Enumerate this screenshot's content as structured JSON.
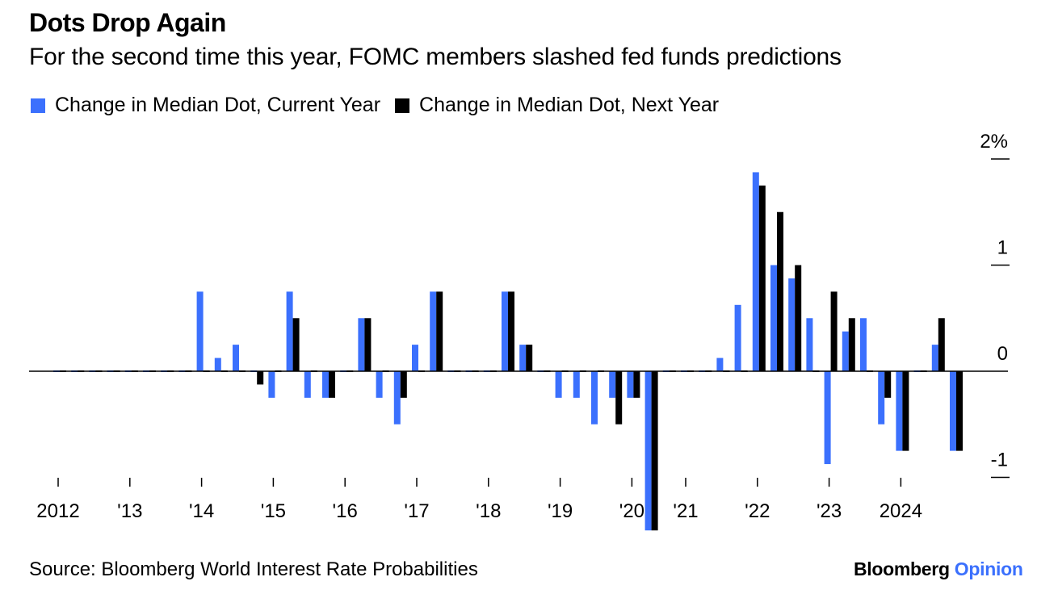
{
  "header": {
    "title": "Dots Drop Again",
    "subtitle": "For the second time this year, FOMC members slashed fed funds predictions"
  },
  "footer": {
    "source": "Source: Bloomberg World Interest Rate Probabilities",
    "brand_main": "Bloomberg",
    "brand_accent": "Opinion"
  },
  "colors": {
    "current_year": "#3b70fd",
    "next_year": "#000000",
    "brand_accent": "#3b70fd"
  },
  "chart_data": {
    "type": "bar",
    "title": "Dots Drop Again",
    "subtitle": "For the second time this year, FOMC members slashed fed funds predictions",
    "xlabel": "",
    "ylabel": "",
    "ylim": [
      -1,
      2
    ],
    "y_ticks": [
      {
        "value": 2,
        "label": "2%"
      },
      {
        "value": 1,
        "label": "1"
      },
      {
        "value": 0,
        "label": "0"
      },
      {
        "value": -1,
        "label": "-1"
      }
    ],
    "grid": false,
    "legend_position": "top-left",
    "x_ticks": [
      {
        "index": 0,
        "label": "2012"
      },
      {
        "index": 4,
        "label": "'13"
      },
      {
        "index": 8,
        "label": "'14"
      },
      {
        "index": 12,
        "label": "'15"
      },
      {
        "index": 16,
        "label": "'16"
      },
      {
        "index": 20,
        "label": "'17"
      },
      {
        "index": 24,
        "label": "'18"
      },
      {
        "index": 28,
        "label": "'19"
      },
      {
        "index": 32,
        "label": "'20"
      },
      {
        "index": 35,
        "label": "'21"
      },
      {
        "index": 39,
        "label": "'22"
      },
      {
        "index": 43,
        "label": "'23"
      },
      {
        "index": 47,
        "label": "2024"
      }
    ],
    "categories": [
      "2012-1",
      "2012-2",
      "2012-3",
      "2012-4",
      "2013-1",
      "2013-2",
      "2013-3",
      "2013-4",
      "2014-1",
      "2014-2",
      "2014-3",
      "2014-4",
      "2015-1",
      "2015-2",
      "2015-3",
      "2015-4",
      "2016-1",
      "2016-2",
      "2016-3",
      "2016-4",
      "2017-1",
      "2017-2",
      "2017-3",
      "2017-4",
      "2018-1",
      "2018-2",
      "2018-3",
      "2018-4",
      "2019-1",
      "2019-2",
      "2019-3",
      "2019-4",
      "2020-2",
      "2020-3",
      "2020-4",
      "2021-1",
      "2021-2",
      "2021-3",
      "2021-4",
      "2022-1",
      "2022-2",
      "2022-3",
      "2022-4",
      "2023-1",
      "2023-2",
      "2023-3",
      "2023-4",
      "2024-1",
      "2024-2",
      "2024-3",
      "2024-4"
    ],
    "series": [
      {
        "name": "Change in Median Dot, Current Year",
        "color": "#3b70fd",
        "values": [
          0,
          0,
          0,
          0,
          0,
          0,
          0,
          0,
          0.75,
          0.125,
          0.25,
          0,
          -0.25,
          0.75,
          -0.25,
          -0.25,
          0,
          0.5,
          -0.25,
          -0.5,
          0.25,
          0.75,
          0,
          0,
          0,
          0.75,
          0.25,
          0,
          -0.25,
          -0.25,
          -0.5,
          -0.25,
          -0.25,
          -1.5,
          0,
          0,
          0,
          0.125,
          0.625,
          1.875,
          1.0,
          0.875,
          0.5,
          -0.875,
          0.375,
          0.5,
          -0.5,
          -0.75,
          0,
          0.25,
          -0.75
        ]
      },
      {
        "name": "Change in Median Dot, Next Year",
        "color": "#000000",
        "values": [
          0,
          0,
          0,
          0,
          0,
          0,
          0,
          0,
          0,
          0,
          0,
          -0.125,
          0,
          0.5,
          0,
          -0.25,
          0,
          0.5,
          0,
          -0.25,
          0,
          0.75,
          0,
          0,
          0,
          0.75,
          0.25,
          0,
          0,
          0,
          0,
          -0.5,
          -0.25,
          -1.5,
          0,
          0,
          0,
          0,
          0,
          1.75,
          1.5,
          1.0,
          0,
          0.75,
          0.5,
          0,
          -0.25,
          -0.75,
          0,
          0.5,
          -0.75
        ]
      }
    ]
  }
}
